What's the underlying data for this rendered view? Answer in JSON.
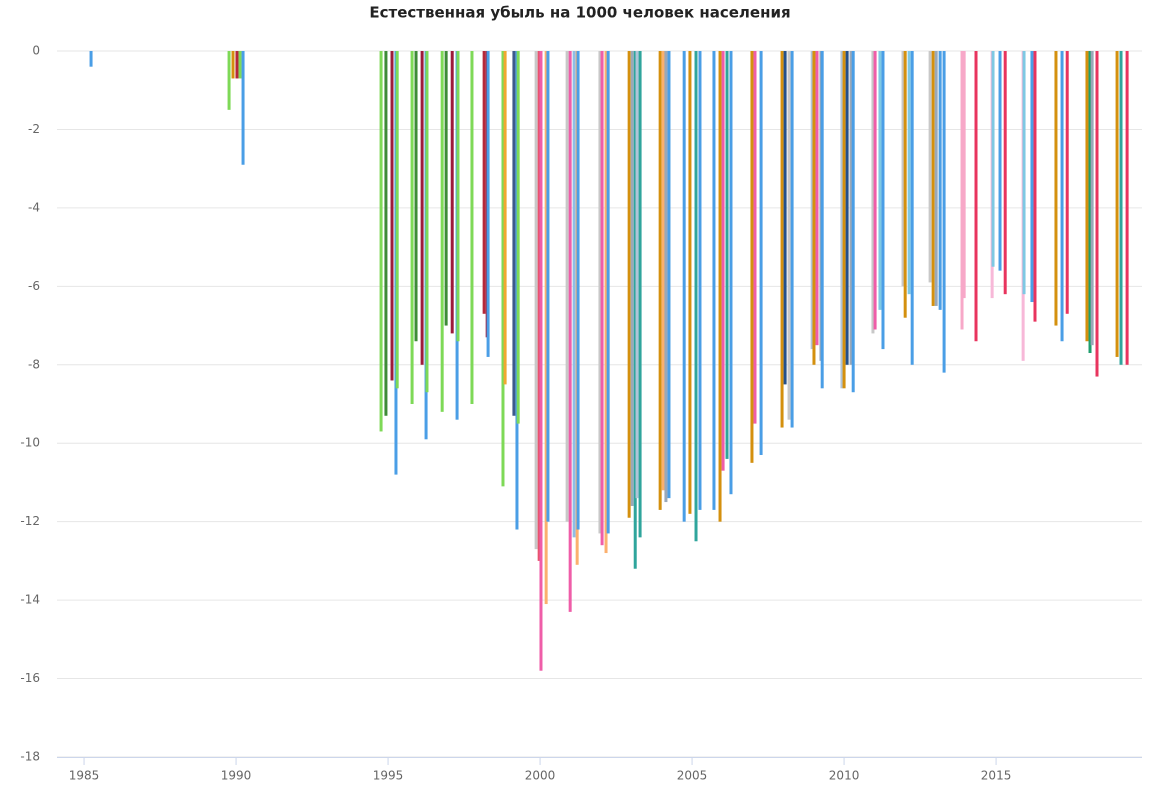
{
  "chart_data": {
    "type": "bar",
    "title": "Естественная убыль на 1000 человек населения",
    "x": [
      1985.23,
      1989.77,
      1989.9,
      1990.03,
      1990.13,
      1990.23,
      1994.77,
      1994.93,
      1995.13,
      1995.26,
      1995.3,
      1995.79,
      1995.92,
      1996.12,
      1996.25,
      1996.28,
      1996.78,
      1996.91,
      1997.11,
      1997.27,
      1997.3,
      1997.76,
      1998.26,
      1998.16,
      1998.29,
      1998.78,
      1998.85,
      1999.14,
      1999.24,
      1999.28,
      1999.87,
      1999.97,
      2000.03,
      2000.2,
      2000.26,
      2000.89,
      2000.99,
      2001.12,
      2001.22,
      2001.25,
      2001.97,
      2002.04,
      2002.17,
      2002.24,
      2002.93,
      2003.03,
      2003.13,
      2003.19,
      2003.29,
      2003.95,
      2004.05,
      2004.14,
      2004.24,
      2004.74,
      2004.93,
      2005.13,
      2005.26,
      2005.72,
      2005.92,
      2006.02,
      2006.15,
      2006.28,
      2006.97,
      2007.07,
      2007.27,
      2007.96,
      2008.06,
      2008.19,
      2008.29,
      2008.95,
      2009.01,
      2009.11,
      2009.24,
      2009.28,
      2009.93,
      2010.0,
      2010.1,
      2010.23,
      2010.3,
      2010.95,
      2011.02,
      2011.18,
      2011.28,
      2011.94,
      2012.01,
      2012.14,
      2012.24,
      2012.83,
      2012.93,
      2013.03,
      2013.16,
      2013.29,
      2013.88,
      2013.95,
      2014.34,
      2014.87,
      2014.9,
      2015.13,
      2015.3,
      2015.89,
      2015.92,
      2016.18,
      2016.28,
      2016.97,
      2017.17,
      2017.34,
      2017.99,
      2018.09,
      2018.16,
      2018.32,
      2018.98,
      2019.11,
      2019.31
    ],
    "values": [
      -0.4,
      -1.5,
      -0.7,
      -0.7,
      -0.7,
      -2.9,
      -9.7,
      -9.3,
      -8.4,
      -10.8,
      -8.6,
      -9.0,
      -7.4,
      -8.0,
      -9.9,
      -8.7,
      -9.2,
      -7.0,
      -7.2,
      -9.4,
      -7.4,
      -9.0,
      -7.3,
      -6.7,
      -7.8,
      -11.1,
      -8.5,
      -9.3,
      -12.2,
      -9.5,
      -12.7,
      -13.0,
      -15.8,
      -14.1,
      -12.0,
      -12.0,
      -14.3,
      -12.4,
      -13.1,
      -12.2,
      -12.3,
      -12.6,
      -12.8,
      -12.3,
      -11.9,
      -11.6,
      -13.2,
      -11.4,
      -12.4,
      -11.7,
      -11.2,
      -11.5,
      -11.4,
      -12.0,
      -11.8,
      -12.5,
      -11.7,
      -11.7,
      -12.0,
      -10.7,
      -10.4,
      -11.3,
      -10.5,
      -9.5,
      -10.3,
      -9.6,
      -8.5,
      -9.4,
      -9.6,
      -7.6,
      -8.0,
      -7.5,
      -7.9,
      -8.6,
      -8.6,
      -8.6,
      -8.0,
      -8.0,
      -8.7,
      -7.2,
      -7.1,
      -6.6,
      -7.6,
      -6.0,
      -6.8,
      -6.2,
      -8.0,
      -5.9,
      -6.5,
      -6.5,
      -6.6,
      -8.2,
      -7.1,
      -6.3,
      -7.4,
      -6.3,
      -5.5,
      -5.6,
      -6.2,
      -7.9,
      -6.2,
      -6.4,
      -6.9,
      -7.0,
      -7.4,
      -6.7,
      -7.4,
      -7.7,
      -7.5,
      -8.3,
      -7.8,
      -8.0,
      -8.0
    ],
    "colors": [
      "#4a9ee6",
      "#7ed957",
      "#d4900e",
      "#b5283a",
      "#7ed957",
      "#4a9ee6",
      "#7ed957",
      "#3d8b37",
      "#9c1b3a",
      "#4a9ee6",
      "#7ed957",
      "#7ed957",
      "#3d8b37",
      "#9c1b3a",
      "#4a9ee6",
      "#7ed957",
      "#7ed957",
      "#3d8b37",
      "#9c1b3a",
      "#4a9ee6",
      "#7ed957",
      "#7ed957",
      "#9c1b3a",
      "#b5283a",
      "#4a9ee6",
      "#7ed957",
      "#f0a830",
      "#3d5a8b",
      "#4a9ee6",
      "#7ed957",
      "#c8c8c8",
      "#e8546e",
      "#ef5da8",
      "#fbb06e",
      "#4a9ee6",
      "#c8c8c8",
      "#ef5da8",
      "#8fbde6",
      "#fbb06e",
      "#4a9ee6",
      "#c8c8c8",
      "#ef5da8",
      "#fbb06e",
      "#4a9ee6",
      "#d4900e",
      "#9aa8b8",
      "#2fa59c",
      "#b0c4d8",
      "#2fa59c",
      "#d4900e",
      "#fbb06e",
      "#9aa8b8",
      "#4a9ee6",
      "#4a9ee6",
      "#d4900e",
      "#2fa59c",
      "#4a9ee6",
      "#4a9ee6",
      "#d4900e",
      "#ef5da8",
      "#2fa59c",
      "#4a9ee6",
      "#d4900e",
      "#ef5da8",
      "#4a9ee6",
      "#d4900e",
      "#24508a",
      "#c8c8c8",
      "#4a9ee6",
      "#b0c4d8",
      "#d4900e",
      "#ef5da8",
      "#9aa8b8",
      "#4a9ee6",
      "#b0c4d8",
      "#d4900e",
      "#24508a",
      "#9aa8b8",
      "#4a9ee6",
      "#c8c8c8",
      "#ef5da8",
      "#7ec8e3",
      "#4a9ee6",
      "#c8c8c8",
      "#d4900e",
      "#7ec8e3",
      "#4a9ee6",
      "#c8c8c8",
      "#d4900e",
      "#9aa8b8",
      "#4a9ee6",
      "#4a9ee6",
      "#f7a8c8",
      "#f7a8c8",
      "#e8345e",
      "#f7b8d8",
      "#7ec8e3",
      "#4a9ee6",
      "#e8345e",
      "#f7b8d8",
      "#7ec8e3",
      "#4a9ee6",
      "#e8345e",
      "#d4900e",
      "#4a9ee6",
      "#e8345e",
      "#d4900e",
      "#1f9e6e",
      "#9aa8b8",
      "#e8345e",
      "#d4900e",
      "#2fa59c",
      "#e8345e"
    ],
    "xlim": [
      1984.11,
      2019.8
    ],
    "xticks": [
      1985,
      1990,
      1995,
      2000,
      2005,
      2010,
      2015
    ],
    "ylim": [
      -18,
      0
    ],
    "yticks": [
      0,
      -2,
      -4,
      -6,
      -8,
      -10,
      -12,
      -14,
      -16,
      -18
    ],
    "grid": true
  }
}
